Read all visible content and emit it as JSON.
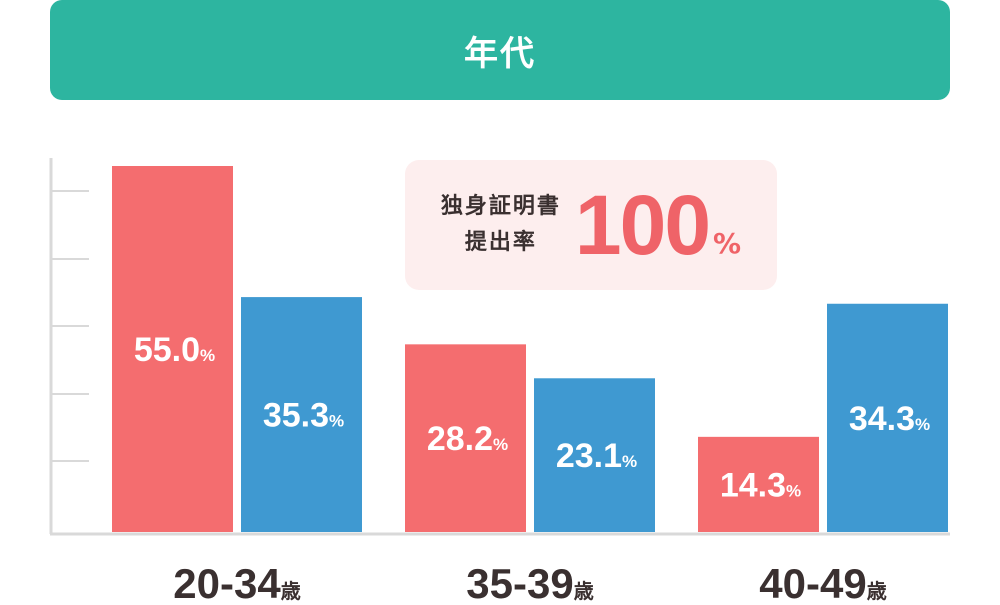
{
  "header": {
    "title": "年代"
  },
  "callout": {
    "line1": "独身証明書",
    "line2": "提出率",
    "value": "100",
    "unit": "%"
  },
  "colors": {
    "header": "#2db5a0",
    "series_a": "#f46d6f",
    "series_b": "#3f99d1",
    "axis": "#d9d9d9",
    "label": "#3a3030",
    "callout_bg": "#fdeeee",
    "callout_value": "#ef6368"
  },
  "chart_data": {
    "type": "bar",
    "categories": [
      "20-34",
      "35-39",
      "40-49"
    ],
    "category_suffix": "歳",
    "value_suffix": "%",
    "series": [
      {
        "values": [
          55.0,
          28.2,
          14.3
        ],
        "labels": [
          "55.0",
          "28.2",
          "14.3"
        ]
      },
      {
        "values": [
          35.3,
          23.1,
          34.3
        ],
        "labels": [
          "35.3",
          "23.1",
          "34.3"
        ]
      }
    ],
    "ylim": [
      0,
      55
    ],
    "grid": false,
    "legend": "none"
  }
}
